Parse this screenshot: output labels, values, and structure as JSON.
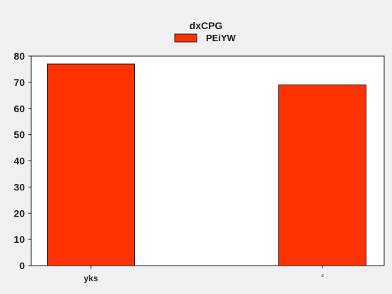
{
  "chart_data": {
    "type": "bar",
    "title": "dxCPG",
    "xlabel": "",
    "ylabel": "",
    "categories": [
      "yks",
      "d"
    ],
    "series": [
      {
        "name": "PEiYW",
        "values": [
          77,
          69
        ]
      }
    ],
    "ylim": [
      0,
      80
    ],
    "yticks": [
      0,
      10,
      20,
      30,
      40,
      50,
      60,
      70,
      80
    ],
    "ytick_labels": [
      "0",
      "10",
      "20",
      "30",
      "40",
      "50",
      "60",
      "70",
      "80"
    ],
    "grid": false,
    "legend": "top-center",
    "colors": {
      "bar_fill": "#ff3300",
      "bar_edge": "#1a1a1a",
      "plot_background": "#ffffff",
      "figure_background": "#f0f0f0"
    }
  }
}
